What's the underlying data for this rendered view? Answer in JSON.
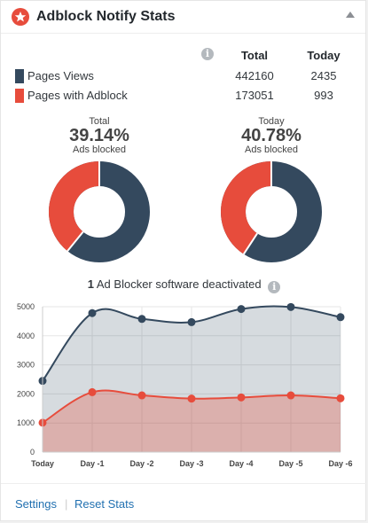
{
  "widget": {
    "title": "Adblock Notify Stats",
    "logo_icon": "star-badge-icon",
    "toggle_icon": "collapse-arrow-icon"
  },
  "stats": {
    "info_icon": "info-icon",
    "headers": {
      "total": "Total",
      "today": "Today"
    },
    "rows": [
      {
        "label": "Pages Views",
        "total": "442160",
        "today": "2435",
        "color": "#34495e"
      },
      {
        "label": "Pages with Adblock",
        "total": "173051",
        "today": "993",
        "color": "#e74c3c"
      }
    ]
  },
  "donuts": [
    {
      "caption": "Total",
      "percent_label": "39.14%",
      "sub": "Ads blocked",
      "percent": 39.14
    },
    {
      "caption": "Today",
      "percent_label": "40.78%",
      "sub": "Ads blocked",
      "percent": 40.78
    }
  ],
  "colors": {
    "dark": "#34495e",
    "red": "#e74c3c"
  },
  "deactivated": {
    "count": "1",
    "text": "Ad Blocker software deactivated"
  },
  "chart_data": {
    "type": "area",
    "categories": [
      "Today",
      "Day -1",
      "Day -2",
      "Day -3",
      "Day -4",
      "Day -5",
      "Day -6"
    ],
    "series": [
      {
        "values": [
          2450,
          4780,
          4580,
          4470,
          4920,
          4990,
          4640
        ],
        "color": "#34495e"
      },
      {
        "values": [
          1010,
          2060,
          1950,
          1840,
          1880,
          1950,
          1850
        ],
        "color": "#e74c3c"
      }
    ],
    "ylim": [
      0,
      5000
    ],
    "yticks": [
      0,
      1000,
      2000,
      3000,
      4000,
      5000
    ],
    "grid": true
  },
  "footer": {
    "settings": "Settings",
    "separator": "|",
    "reset": "Reset Stats"
  }
}
